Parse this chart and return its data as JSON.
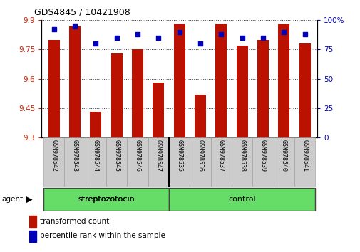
{
  "title": "GDS4845 / 10421908",
  "samples": [
    "GSM978542",
    "GSM978543",
    "GSM978544",
    "GSM978545",
    "GSM978546",
    "GSM978547",
    "GSM978535",
    "GSM978536",
    "GSM978537",
    "GSM978538",
    "GSM978539",
    "GSM978540",
    "GSM978541"
  ],
  "red_values": [
    9.8,
    9.87,
    9.43,
    9.73,
    9.75,
    9.58,
    9.88,
    9.52,
    9.88,
    9.77,
    9.8,
    9.88,
    9.78
  ],
  "blue_values": [
    92,
    95,
    80,
    85,
    88,
    85,
    90,
    80,
    88,
    85,
    85,
    90,
    88
  ],
  "y_min": 9.3,
  "y_max": 9.9,
  "y_ticks_left": [
    9.3,
    9.45,
    9.6,
    9.75,
    9.9
  ],
  "y_ticks_right": [
    0,
    25,
    50,
    75,
    100
  ],
  "strep_samples": 6,
  "bar_color": "#BB1100",
  "dot_color": "#0000BB",
  "bar_width": 0.55,
  "tick_label_color_left": "#CC2200",
  "tick_label_color_right": "#0000CC",
  "plot_bg": "#FFFFFF",
  "grid_color": "#333333",
  "sample_bg": "#CCCCCC",
  "group_color": "#66DD66",
  "group_border_color": "#444444",
  "title_fontsize": 9,
  "axis_fontsize": 7.5,
  "sample_fontsize": 6,
  "legend_fontsize": 7.5,
  "group_fontsize": 8
}
